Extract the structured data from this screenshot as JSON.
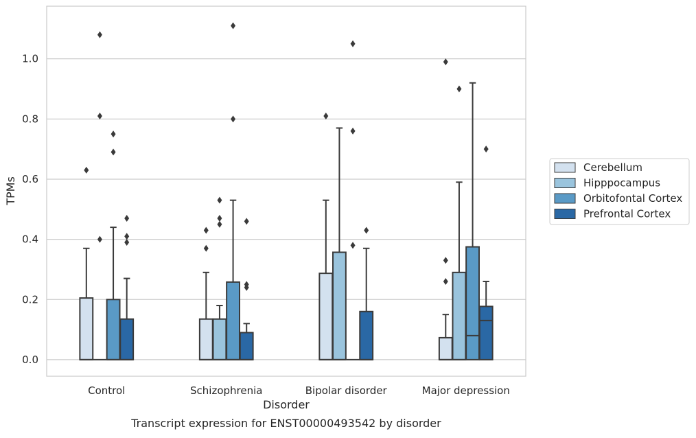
{
  "caption": "Transcript expression for ENST00000493542 by disorder",
  "chart_data": {
    "type": "boxplot",
    "xlabel": "Disorder",
    "ylabel": "TPMs",
    "ylim": [
      -0.055,
      1.175
    ],
    "yticks": [
      0.0,
      0.2,
      0.4,
      0.6,
      0.8,
      1.0
    ],
    "ytick_labels": [
      "0.0",
      "0.2",
      "0.4",
      "0.6",
      "0.8",
      "1.0"
    ],
    "grid": true,
    "legend_position": "right",
    "categories": [
      "Control",
      "Schizophrenia",
      "Bipolar disorder",
      "Major depression"
    ],
    "series": [
      {
        "name": "Cerebellum",
        "color": "#d3e1ef",
        "boxes": [
          {
            "q1": 0.0,
            "median": 0.0,
            "q3": 0.205,
            "whisker_low": 0.0,
            "whisker_high": 0.37,
            "outliers": [
              0.63
            ]
          },
          {
            "q1": 0.0,
            "median": 0.0,
            "q3": 0.135,
            "whisker_low": 0.0,
            "whisker_high": 0.29,
            "outliers": [
              0.37,
              0.43
            ]
          },
          {
            "q1": 0.0,
            "median": 0.0,
            "q3": 0.287,
            "whisker_low": 0.0,
            "whisker_high": 0.53,
            "outliers": [
              0.81
            ]
          },
          {
            "q1": 0.0,
            "median": 0.0,
            "q3": 0.073,
            "whisker_low": 0.0,
            "whisker_high": 0.15,
            "outliers": [
              0.26,
              0.33,
              0.99
            ]
          }
        ]
      },
      {
        "name": "Hipppocampus",
        "color": "#9ac4dd",
        "boxes": [
          {
            "q1": 0.0,
            "median": 0.0,
            "q3": 0.0,
            "whisker_low": 0.0,
            "whisker_high": 0.0,
            "outliers": [
              0.4,
              0.81,
              1.08
            ]
          },
          {
            "q1": 0.0,
            "median": 0.0,
            "q3": 0.135,
            "whisker_low": 0.0,
            "whisker_high": 0.18,
            "outliers": [
              0.45,
              0.47,
              0.53
            ]
          },
          {
            "q1": 0.0,
            "median": 0.0,
            "q3": 0.357,
            "whisker_low": 0.0,
            "whisker_high": 0.77,
            "outliers": []
          },
          {
            "q1": 0.0,
            "median": 0.0,
            "q3": 0.29,
            "whisker_low": 0.0,
            "whisker_high": 0.59,
            "outliers": [
              0.9
            ]
          }
        ]
      },
      {
        "name": "Orbitofontal Cortex",
        "color": "#5a9ac6",
        "boxes": [
          {
            "q1": 0.0,
            "median": 0.0,
            "q3": 0.2,
            "whisker_low": 0.0,
            "whisker_high": 0.44,
            "outliers": [
              0.69,
              0.75
            ]
          },
          {
            "q1": 0.0,
            "median": 0.0,
            "q3": 0.258,
            "whisker_low": 0.0,
            "whisker_high": 0.53,
            "outliers": [
              0.8,
              1.11
            ]
          },
          {
            "q1": 0.0,
            "median": 0.0,
            "q3": 0.0,
            "whisker_low": 0.0,
            "whisker_high": 0.0,
            "outliers": [
              0.38,
              0.76,
              1.05
            ]
          },
          {
            "q1": 0.0,
            "median": 0.08,
            "q3": 0.375,
            "whisker_low": 0.0,
            "whisker_high": 0.92,
            "outliers": []
          }
        ]
      },
      {
        "name": "Prefrontal Cortex",
        "color": "#2a68a5",
        "boxes": [
          {
            "q1": 0.0,
            "median": 0.0,
            "q3": 0.135,
            "whisker_low": 0.0,
            "whisker_high": 0.27,
            "outliers": [
              0.39,
              0.41,
              0.47
            ]
          },
          {
            "q1": 0.0,
            "median": 0.0,
            "q3": 0.09,
            "whisker_low": 0.0,
            "whisker_high": 0.12,
            "outliers": [
              0.24,
              0.25,
              0.46
            ]
          },
          {
            "q1": 0.0,
            "median": 0.0,
            "q3": 0.16,
            "whisker_low": 0.0,
            "whisker_high": 0.37,
            "outliers": [
              0.43
            ]
          },
          {
            "q1": 0.0,
            "median": 0.13,
            "q3": 0.177,
            "whisker_low": 0.0,
            "whisker_high": 0.26,
            "outliers": [
              0.7
            ]
          }
        ]
      }
    ]
  }
}
